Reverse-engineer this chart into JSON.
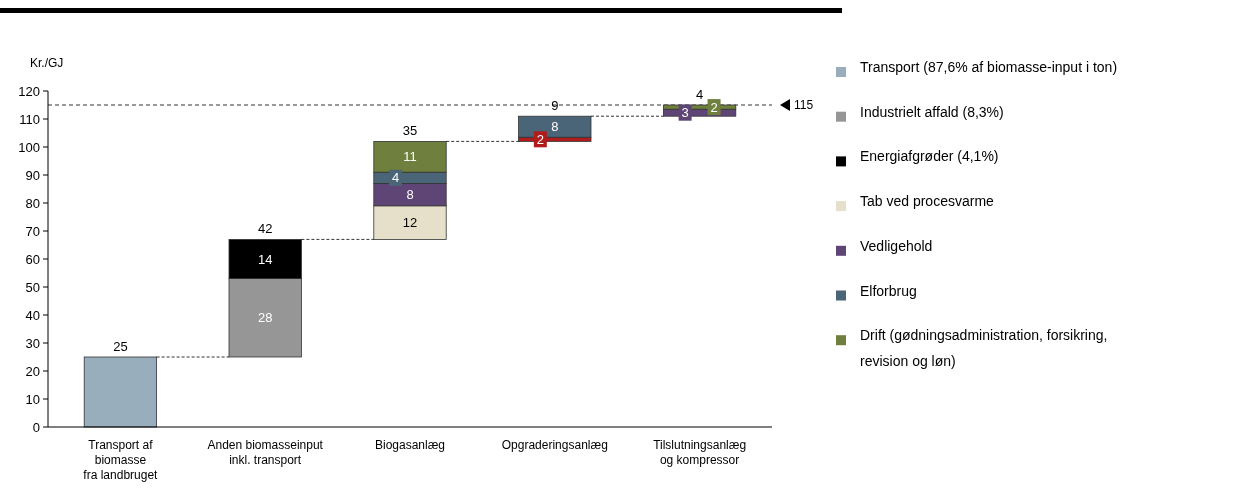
{
  "chart_data": {
    "type": "bar",
    "ylabel": "Kr./GJ",
    "categories": [
      "Transport af\nbiomasse\nfra landbruget",
      "Anden biomasseinput\ninkl. transport",
      "Biogasanlæg",
      "Opgraderingsanlæg",
      "Tilslutningsanlæg\nog kompressor"
    ],
    "series": [
      {
        "name": "Transport (87,6% af biomasse-input i ton)",
        "color": "#98aebd",
        "values": [
          25,
          null,
          null,
          null,
          null
        ],
        "base": [
          0,
          null,
          null,
          null,
          null
        ],
        "value_labels": [
          null,
          null,
          null,
          null,
          null
        ]
      },
      {
        "name": "Industrielt affald (8,3%)",
        "color": "#969696",
        "values": [
          null,
          28,
          null,
          null,
          null
        ],
        "base": [
          null,
          25,
          null,
          null,
          null
        ],
        "value_labels": [
          null,
          "28",
          null,
          null,
          null
        ]
      },
      {
        "name": "Energiafgrøder (4,1%)",
        "color": "#000000",
        "values": [
          null,
          14,
          null,
          null,
          null
        ],
        "base": [
          null,
          53,
          null,
          null,
          null
        ],
        "value_labels": [
          null,
          "14",
          null,
          null,
          null
        ]
      },
      {
        "color": "#b01c1c",
        "values": [
          null,
          null,
          null,
          1.5,
          null
        ],
        "base": [
          null,
          null,
          null,
          102,
          null
        ],
        "value_labels": [
          null,
          null,
          null,
          "2",
          null
        ]
      },
      {
        "name": "Tab ved procesvarme",
        "color": "#e6e0ca",
        "values": [
          null,
          null,
          12,
          null,
          null
        ],
        "base": [
          null,
          null,
          67,
          null,
          null
        ],
        "value_labels": [
          null,
          null,
          "12",
          null,
          null
        ]
      },
      {
        "name": "Vedligehold",
        "color": "#5f4576",
        "values": [
          null,
          null,
          8,
          null,
          2.5
        ],
        "base": [
          null,
          null,
          79,
          null,
          111
        ],
        "value_labels": [
          null,
          null,
          "8",
          null,
          "3"
        ]
      },
      {
        "name": "Elforbrug",
        "color": "#4b6578",
        "values": [
          null,
          null,
          4,
          7.5,
          null
        ],
        "base": [
          null,
          null,
          87,
          103.5,
          null
        ],
        "value_labels": [
          null,
          null,
          "4",
          "8",
          null
        ]
      },
      {
        "name": "Drift (gødningsadministration, forsikring,\nrevision og løn)",
        "color": "#6e7f3e",
        "values": [
          null,
          null,
          11,
          null,
          1.5
        ],
        "base": [
          null,
          null,
          91,
          null,
          113.5
        ],
        "value_labels": [
          null,
          null,
          "11",
          null,
          "2"
        ]
      }
    ],
    "annotations": [
      {
        "text": "25",
        "x": "Transport af\nbiomasse\nfra landbruget",
        "y": 25
      },
      {
        "text": "42",
        "x": "Anden biomasseinput\ninkl. transport",
        "y": 67
      },
      {
        "text": "35",
        "x": "Biogasanlæg",
        "y": 102
      },
      {
        "text": "9",
        "x": "Opgraderingsanlæg",
        "y": 111
      },
      {
        "text": "4",
        "x": "Tilslutningsanlæg\nog kompressor",
        "y": 115
      }
    ],
    "ylim": [
      0,
      120
    ],
    "yticks": [
      0,
      10,
      20,
      30,
      40,
      50,
      60,
      70,
      80,
      90,
      100,
      110,
      120
    ],
    "ref_lines": [
      {
        "axis": "y",
        "value": 115,
        "label": "115",
        "line_style": "dashed",
        "color": "#000000"
      }
    ],
    "legend": "right",
    "grid": false
  }
}
